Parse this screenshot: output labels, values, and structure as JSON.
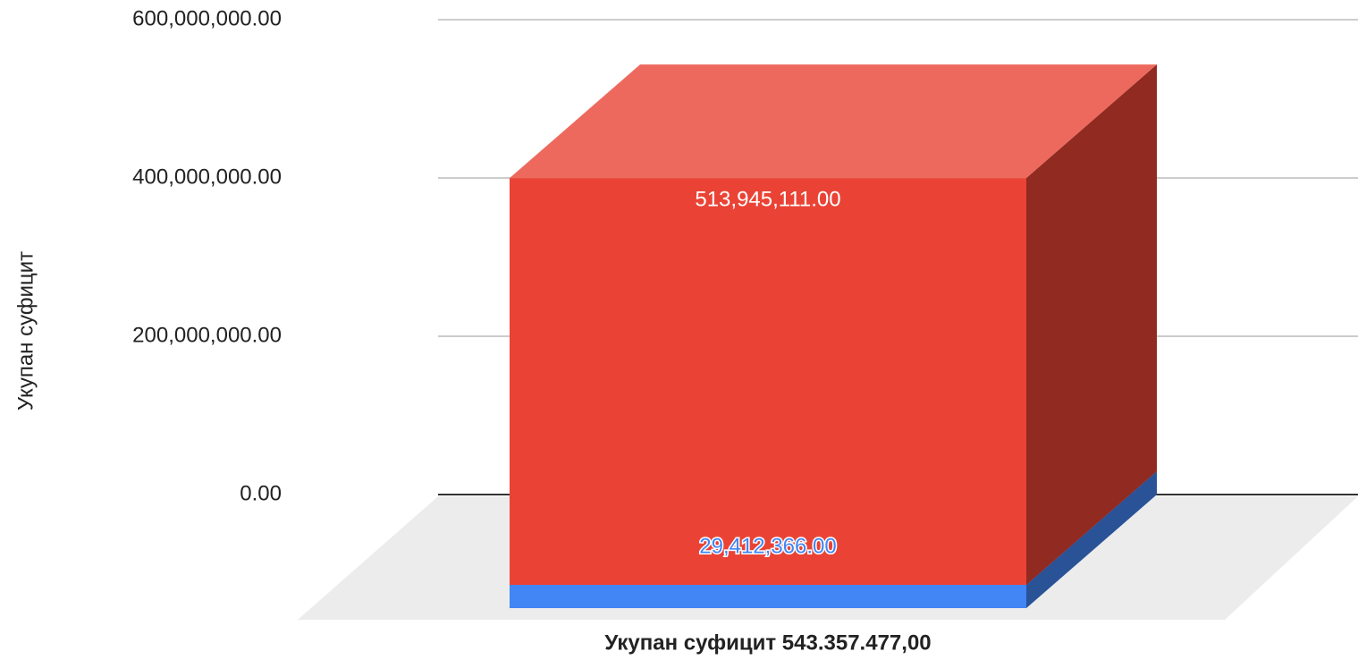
{
  "chart_data": {
    "type": "bar3d_stacked",
    "y_label": "Укупан суфицит",
    "categories": [
      "Укупан суфицит 543.357.477,00"
    ],
    "series": [
      {
        "name": "Blue",
        "color": "#4285f4",
        "values": [
          29412366
        ],
        "value_labels": [
          "29,412,366.00"
        ]
      },
      {
        "name": "Red",
        "color": "#ea4335",
        "values": [
          513945111
        ],
        "value_labels": [
          "513,945,111.00"
        ]
      }
    ],
    "ylim": [
      0,
      600000000
    ],
    "yticks": [
      {
        "value": 0,
        "label": "0.00"
      },
      {
        "value": 200000000,
        "label": "200,000,000.00"
      },
      {
        "value": 400000000,
        "label": "400,000,000.00"
      },
      {
        "value": 600000000,
        "label": "600,000,000.00"
      }
    ],
    "grid": true
  }
}
